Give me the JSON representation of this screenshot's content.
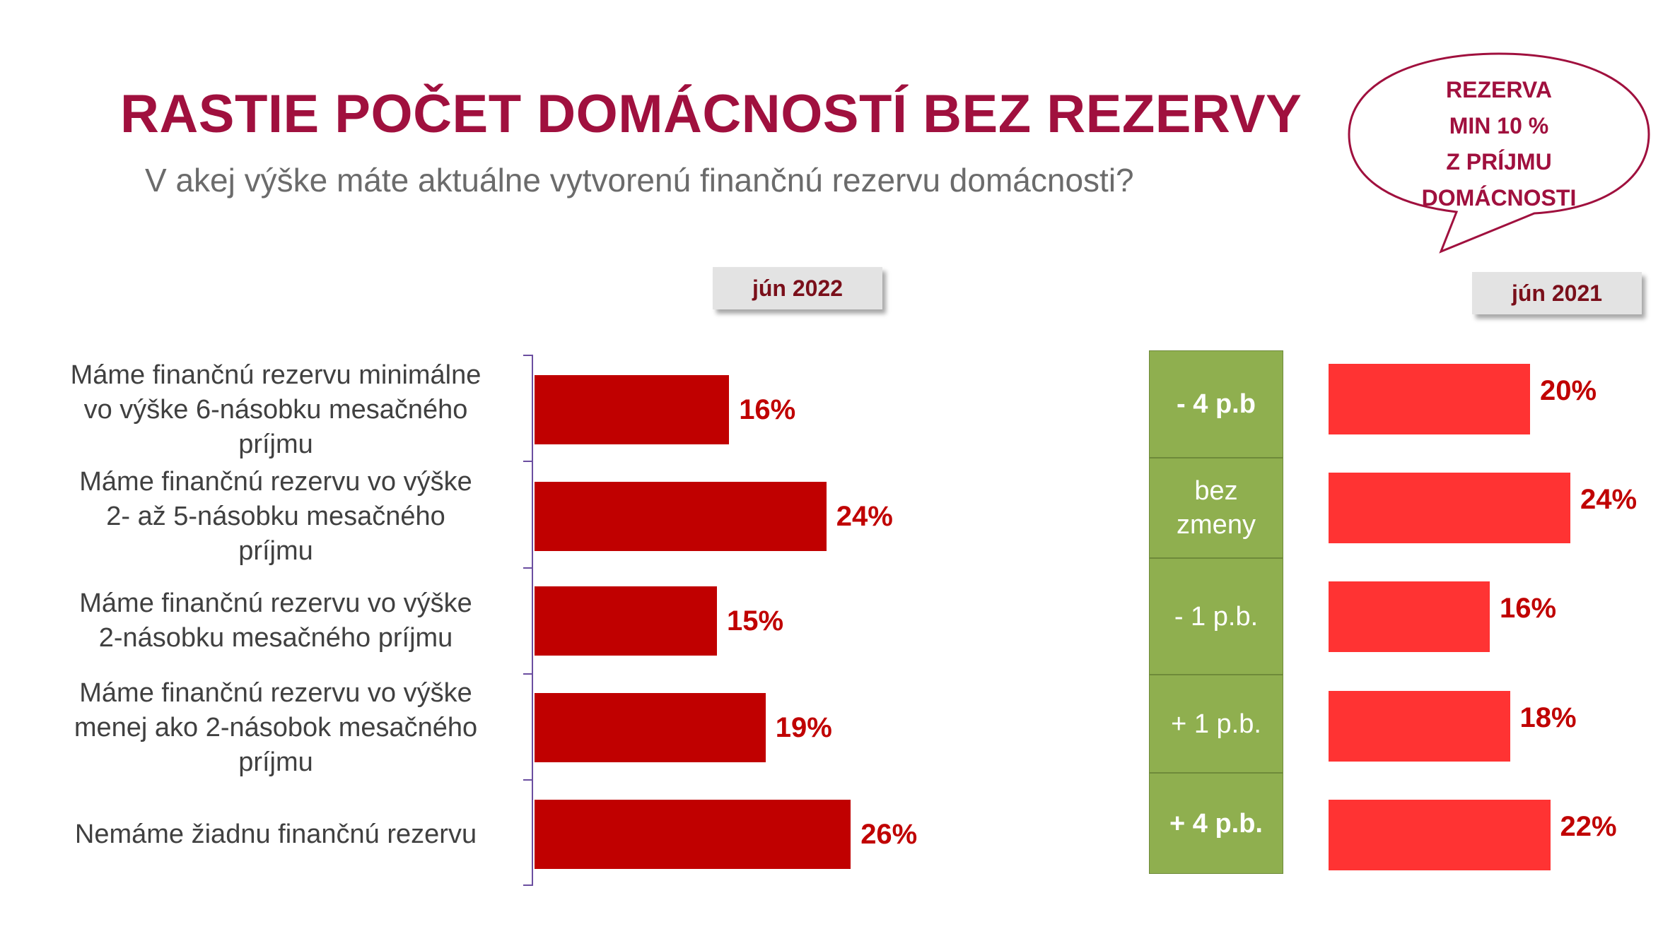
{
  "title": "RASTIE POČET DOMÁCNOSTÍ BEZ REZERVY",
  "subtitle": "V akej výške máte aktuálne vytvorenú finančnú rezervu domácnosti?",
  "bubble": {
    "lines": [
      "REZERVA",
      "MIN 10 %",
      "Z PRÍJMU",
      "DOMÁCNOSTI"
    ]
  },
  "colors": {
    "title": "#a0103e",
    "bar_2022": "#c00000",
    "bar_2021": "#ff3333",
    "change_box": "#8faf4f"
  },
  "chart_data": {
    "type": "bar",
    "orientation": "horizontal",
    "unit": "%",
    "categories": [
      [
        "Máme finančnú rezervu minimálne",
        "vo výške 6-násobku mesačného",
        "príjmu"
      ],
      [
        "Máme finančnú rezervu vo výške",
        "2- až 5-násobku mesačného",
        "príjmu"
      ],
      [
        "Máme finančnú rezervu vo výške",
        "2-násobku mesačného príjmu"
      ],
      [
        "Máme finančnú rezervu vo výške",
        "menej ako 2-násobok mesačného",
        "príjmu"
      ],
      [
        "Nemáme žiadnu finančnú rezervu"
      ]
    ],
    "series": [
      {
        "name": "jún 2022",
        "values": [
          16,
          24,
          15,
          19,
          26
        ],
        "labels": [
          "16%",
          "24%",
          "15%",
          "19%",
          "26%"
        ]
      },
      {
        "name": "jún 2021",
        "values": [
          20,
          24,
          16,
          18,
          22
        ],
        "labels": [
          "20%",
          "24%",
          "16%",
          "18%",
          "22%"
        ]
      }
    ],
    "changes": [
      {
        "lines": [
          "- 4 p.b"
        ],
        "bold": true
      },
      {
        "lines": [
          "bez",
          "zmeny"
        ],
        "bold": false
      },
      {
        "lines": [
          "- 1 p.b."
        ],
        "bold": false
      },
      {
        "lines": [
          "+ 1 p.b."
        ],
        "bold": false
      },
      {
        "lines": [
          "+ 4 p.b."
        ],
        "bold": true
      }
    ]
  }
}
